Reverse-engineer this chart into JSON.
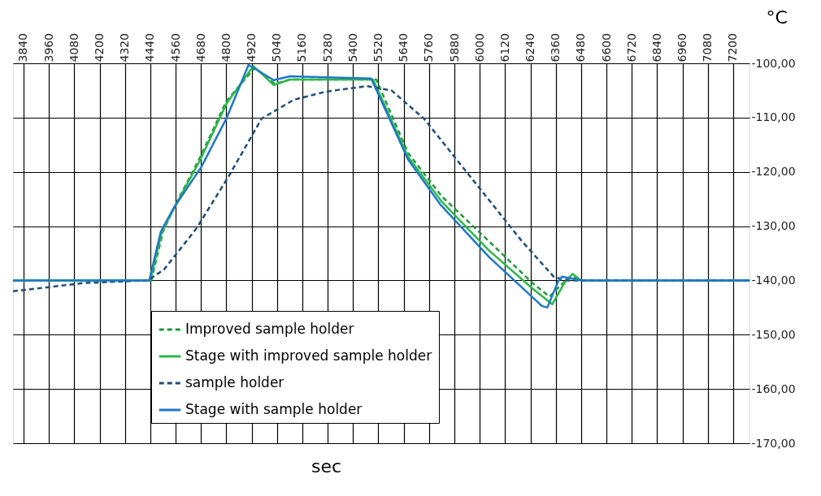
{
  "chart_data": {
    "type": "line",
    "xlabel": "sec",
    "ylabel": "°C",
    "xlim": [
      3790,
      7277
    ],
    "xticks": [
      3840,
      3960,
      4080,
      4200,
      4320,
      4440,
      4560,
      4680,
      4800,
      4920,
      5040,
      5160,
      5280,
      5400,
      5520,
      5640,
      5760,
      5880,
      6000,
      6120,
      6240,
      6360,
      6480,
      6600,
      6720,
      6840,
      6960,
      7080,
      7200
    ],
    "ylim": [
      -170,
      -100
    ],
    "yticks": [
      {
        "value": -100,
        "label": "-100,00"
      },
      {
        "value": -110,
        "label": "-110,00"
      },
      {
        "value": -120,
        "label": "-120,00"
      },
      {
        "value": -130,
        "label": "-130,00"
      },
      {
        "value": -140,
        "label": "-140,00"
      },
      {
        "value": -150,
        "label": "-150,00"
      },
      {
        "value": -160,
        "label": "-160,00"
      },
      {
        "value": -170,
        "label": "-170,00"
      }
    ],
    "grid": true,
    "legend": "bottom left",
    "marker": "none",
    "series": [
      {
        "name": "Improved sample holder",
        "color": "#1f9a3c",
        "line_style": "dashed",
        "x": [
          3790,
          4445,
          4500,
          4560,
          4680,
          4800,
          4935,
          5030,
          5100,
          5510,
          5660,
          5820,
          6060,
          6250,
          6330,
          6380,
          6430,
          6480,
          7277
        ],
        "values": [
          -140,
          -140,
          -131,
          -126,
          -117,
          -107,
          -100.8,
          -103.8,
          -103,
          -103,
          -116.5,
          -124.5,
          -133.4,
          -140.5,
          -143,
          -141,
          -139.2,
          -140,
          -140
        ]
      },
      {
        "name": "Stage with improved sample holder",
        "color": "#2db84a",
        "line_style": "solid",
        "x": [
          3790,
          4440,
          4495,
          4560,
          4680,
          4800,
          4928,
          5025,
          5100,
          5495,
          5660,
          5820,
          6044,
          6250,
          6343,
          6400,
          6440,
          6480,
          7277
        ],
        "values": [
          -140,
          -140,
          -131,
          -126.2,
          -117.5,
          -107.5,
          -100.5,
          -104,
          -103,
          -103,
          -117.2,
          -125.5,
          -134.5,
          -141.5,
          -144.4,
          -140.5,
          -138.8,
          -140,
          -140
        ]
      },
      {
        "name": "sample holder",
        "color": "#1f4e79",
        "line_style": "dashed",
        "x": [
          3790,
          4120,
          4428,
          4505,
          4659,
          4813,
          4967,
          5120,
          5274,
          5466,
          5582,
          5736,
          5890,
          6044,
          6198,
          6352,
          6420,
          7277
        ],
        "values": [
          -142,
          -140.5,
          -140,
          -138,
          -130.4,
          -120.7,
          -110.2,
          -106.7,
          -105.2,
          -104.2,
          -105,
          -110.2,
          -117.7,
          -125.2,
          -132.7,
          -139.4,
          -140,
          -140
        ]
      },
      {
        "name": "Stage with sample holder",
        "color": "#1e78c8",
        "line_style": "solid",
        "x": [
          3790,
          4435,
          4490,
          4550,
          4680,
          4800,
          4905,
          5025,
          5100,
          5486,
          5660,
          5813,
          6044,
          6294,
          6320,
          6371,
          6390,
          6480,
          7277
        ],
        "values": [
          -140,
          -140,
          -131,
          -126.7,
          -119.2,
          -110.2,
          -100.3,
          -103.1,
          -102.4,
          -102.8,
          -117.7,
          -126,
          -135.7,
          -144.7,
          -145,
          -140.2,
          -139.3,
          -140,
          -140
        ]
      }
    ]
  }
}
